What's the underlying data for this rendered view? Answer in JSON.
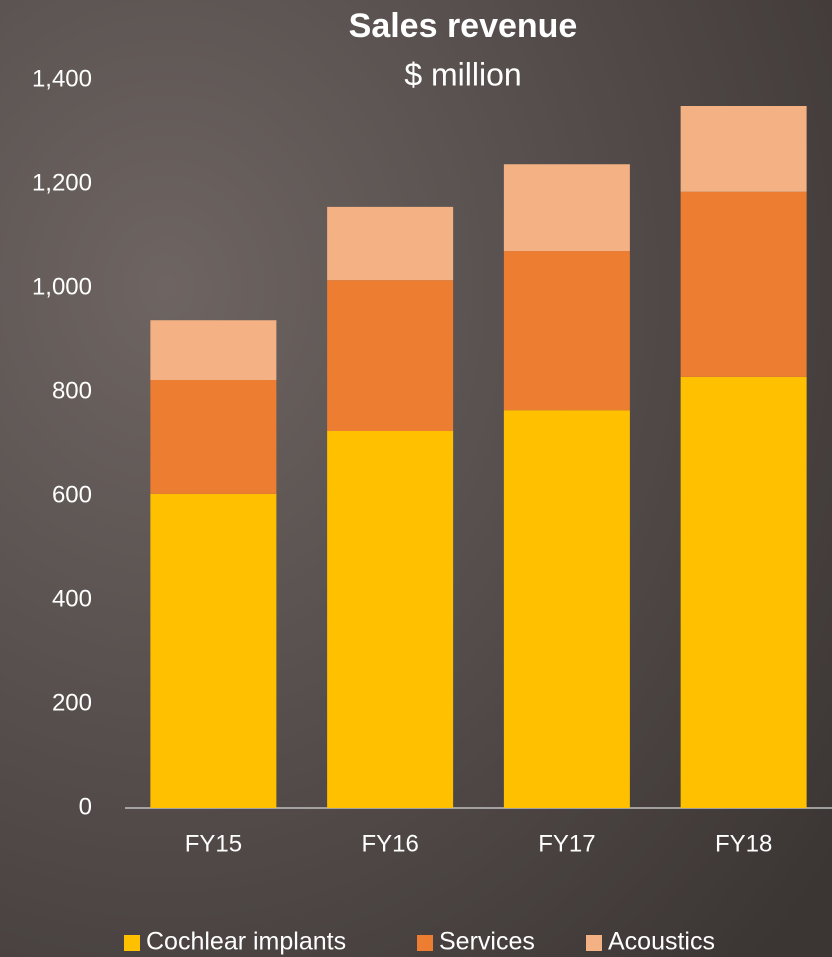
{
  "chart_data": {
    "type": "stacked_bar",
    "title": "Sales revenue",
    "subtitle": "$ million",
    "categories": [
      "FY15",
      "FY16",
      "FY17",
      "FY18"
    ],
    "series": [
      {
        "name": "Cochlear implants",
        "color": "#ffc000",
        "values": [
          604,
          725,
          765,
          829
        ]
      },
      {
        "name": "Services",
        "color": "#ed7d31",
        "values": [
          219,
          290,
          306,
          356
        ]
      },
      {
        "name": "Acoustics",
        "color": "#f4b183",
        "values": [
          115,
          141,
          167,
          165
        ]
      }
    ],
    "ylim": [
      0,
      1400
    ],
    "yticks": [
      0,
      200,
      400,
      600,
      800,
      {
        "value": 1000,
        "label": "1,000"
      },
      {
        "value": 1200,
        "label": "1,200"
      },
      {
        "value": 1400,
        "label": "1,400"
      }
    ],
    "grid": false
  }
}
